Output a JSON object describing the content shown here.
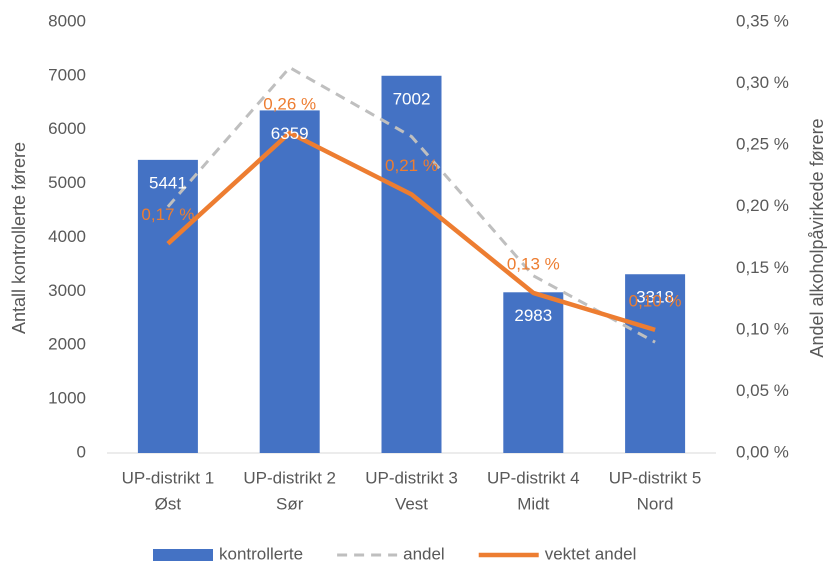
{
  "chart_data": {
    "type": "bar-line",
    "categories": [
      [
        "UP-distrikt 1",
        "Øst"
      ],
      [
        "UP-distrikt 2",
        "Sør"
      ],
      [
        "UP-distrikt 3",
        "Vest"
      ],
      [
        "UP-distrikt 4",
        "Midt"
      ],
      [
        "UP-distrikt 5",
        "Nord"
      ]
    ],
    "y_label": "Antall kontrollerte førere",
    "y2_label": "Andel alkoholpåvirkede førere",
    "ylim": [
      0,
      8000
    ],
    "yticks": [
      0,
      1000,
      2000,
      3000,
      4000,
      5000,
      6000,
      7000,
      8000
    ],
    "y2lim": [
      0,
      0.35
    ],
    "y2ticks": [
      {
        "value": 0,
        "label": "0,00 %"
      },
      {
        "value": 0.05,
        "label": "0,05 %"
      },
      {
        "value": 0.1,
        "label": "0,10 %"
      },
      {
        "value": 0.15,
        "label": "0,15 %"
      },
      {
        "value": 0.2,
        "label": "0,20 %"
      },
      {
        "value": 0.25,
        "label": "0,25 %"
      },
      {
        "value": 0.3,
        "label": "0,30 %"
      },
      {
        "value": 0.35,
        "label": "0,35 %"
      }
    ],
    "grid": false,
    "legend": "bottom",
    "series": [
      {
        "name": "kontrollerte",
        "type": "bar",
        "color": "#4472c4",
        "values": [
          5441,
          6359,
          7002,
          2983,
          3318
        ]
      },
      {
        "name": "andel",
        "type": "line",
        "dashed": true,
        "axis": "y2",
        "color": "#bfbfbf",
        "values": [
          0.2,
          0.313,
          0.257,
          0.144,
          0.09
        ]
      },
      {
        "name": "vektet andel",
        "type": "line",
        "axis": "y2",
        "color": "#ed7d31",
        "values": [
          0.17,
          0.26,
          0.21,
          0.13,
          0.1
        ],
        "value_labels": [
          "0,17 %",
          "0,26 %",
          "0,21 %",
          "0,13 %",
          "0,10 %"
        ]
      }
    ]
  }
}
